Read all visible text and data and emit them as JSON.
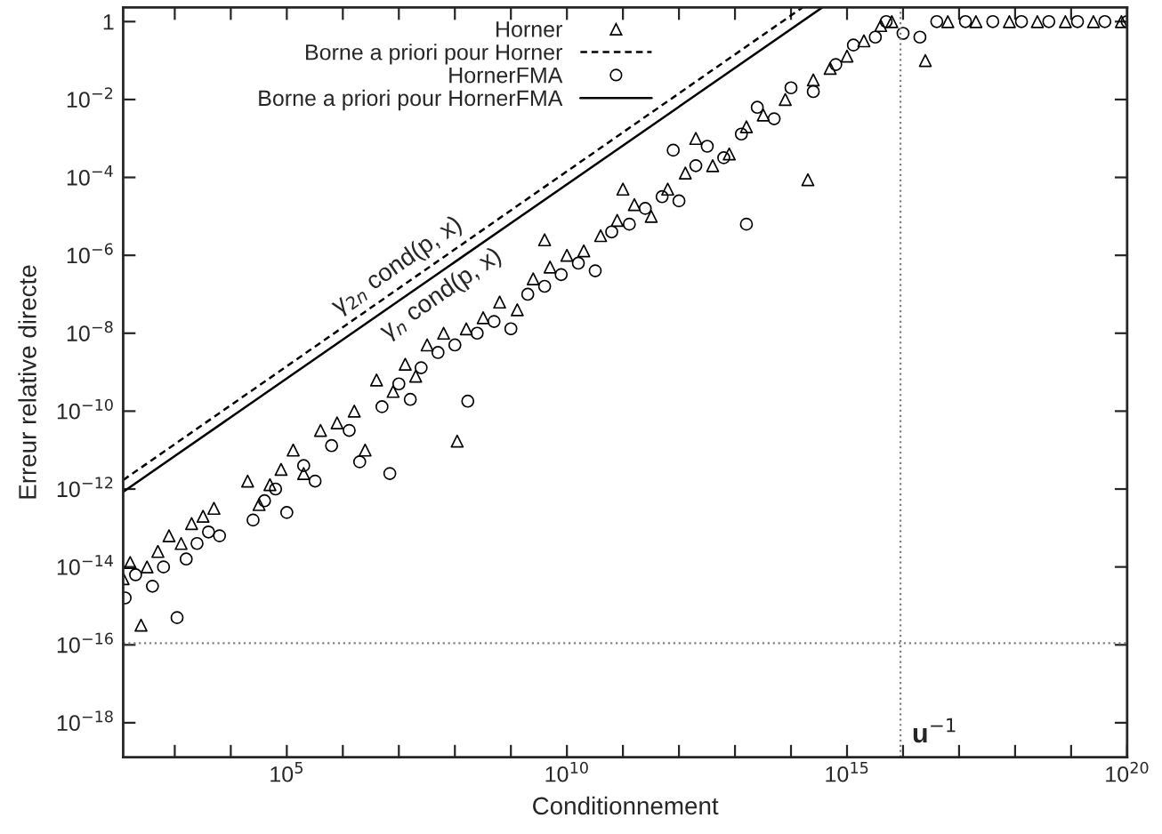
{
  "chart_data": {
    "type": "scatter",
    "xlabel": "Conditionnement",
    "ylabel": "Erreur relative directe",
    "log": "xy",
    "grid": false,
    "legend": "top",
    "xlim": [
      120,
      1e+20
    ],
    "ylim": [
      1.3e-19,
      2.3
    ],
    "xticks": [
      {
        "value": 1000,
        "label": null
      },
      {
        "value": 10000,
        "label": null
      },
      {
        "value": 100000,
        "label": "10$^{5}$"
      },
      {
        "value": 1000000.0,
        "label": null
      },
      {
        "value": 10000000.0,
        "label": null
      },
      {
        "value": 100000000.0,
        "label": null
      },
      {
        "value": 1000000000.0,
        "label": null
      },
      {
        "value": 10000000000.0,
        "label": "10$^{10}$"
      },
      {
        "value": 100000000000.0,
        "label": null
      },
      {
        "value": 1000000000000.0,
        "label": null
      },
      {
        "value": 10000000000000.0,
        "label": null
      },
      {
        "value": 100000000000000.0,
        "label": null
      },
      {
        "value": 1000000000000000.0,
        "label": "10$^{15}$"
      },
      {
        "value": 1e+16,
        "label": null
      },
      {
        "value": 1e+17,
        "label": null
      },
      {
        "value": 1e+18,
        "label": null
      },
      {
        "value": 1e+19,
        "label": null
      },
      {
        "value": 1e+20,
        "label": "10$^{20}$"
      }
    ],
    "yticks": [
      {
        "value": 1,
        "label": "1"
      },
      {
        "value": 0.01,
        "label": "10$^{−2}$"
      },
      {
        "value": 0.0001,
        "label": "10$^{−4}$"
      },
      {
        "value": 1e-06,
        "label": "10$^{−6}$"
      },
      {
        "value": 1e-08,
        "label": "10$^{−8}$"
      },
      {
        "value": 1e-10,
        "label": "10$^{−10}$"
      },
      {
        "value": 1e-12,
        "label": "10$^{−12}$"
      },
      {
        "value": 1e-14,
        "label": "10$^{−14}$"
      },
      {
        "value": 1e-16,
        "label": "10$^{−16}$"
      },
      {
        "value": 1e-18,
        "label": "10$^{−18}$"
      }
    ],
    "series": [
      {
        "name": "Horner",
        "marker": "triangle",
        "color": "#000000",
        "x": [
          120,
          160,
          250,
          320,
          500,
          790,
          1300,
          2000,
          3200,
          5000,
          20000,
          32000,
          50000,
          79000,
          130000,
          200000,
          400000,
          790000,
          1600000.0,
          2500000.0,
          4000000.0,
          7900000.0,
          13000000.0,
          20000000.0,
          32000000.0,
          63000000.0,
          110000000.0,
          160000000.0,
          320000000.0,
          630000000.0,
          1300000000.0,
          2500000000.0,
          5000000000.0,
          10000000000.0,
          20000000000.0,
          40000000000.0,
          79000000000.0,
          160000000000.0,
          320000000000.0,
          630000000000.0,
          1300000000000.0,
          2000000000000.0,
          4000000000000.0,
          7900000000000.0,
          16000000000000.0,
          32000000000000.0,
          79000000000000.0,
          200000000000000.0,
          250000000000000.0,
          500000000000000.0,
          1000000000000000.0,
          2000000000000000.0,
          4000000000000000.0,
          6300000000000000.0,
          2.5e+16,
          6.3e+16,
          2e+17,
          7.9e+17,
          2.5e+18,
          7.9e+18,
          2.5e+19,
          7.9e+19,
          100000000000.0,
          4000000000.0
        ],
        "values": [
          5e-15,
          1.3e-14,
          3.2e-16,
          1e-14,
          2.5e-14,
          6.3e-14,
          4e-14,
          1.3e-13,
          2e-13,
          3.2e-13,
          1.6e-12,
          4e-13,
          1.3e-12,
          3.2e-12,
          1e-11,
          2.5e-12,
          3.2e-11,
          5e-11,
          1e-10,
          1e-11,
          6.3e-10,
          3.2e-10,
          1.6e-09,
          7.9e-10,
          5e-09,
          1e-08,
          1.7e-11,
          1.3e-08,
          2.5e-08,
          6.3e-08,
          4e-08,
          2.5e-07,
          5e-07,
          1e-06,
          1.3e-06,
          3.2e-06,
          7.9e-06,
          2e-05,
          1e-05,
          5e-05,
          0.00013,
          0.001,
          0.0002,
          0.0004,
          0.002,
          0.004,
          0.01,
          8.7e-05,
          0.032,
          0.063,
          0.13,
          0.32,
          0.79,
          1,
          0.1,
          1,
          1,
          1,
          1,
          1,
          1,
          1,
          5e-05,
          2.5e-06
        ]
      },
      {
        "name": "Borne a priori pour Horner",
        "type": "line",
        "line_style": "dashed",
        "marker": "none",
        "color": "#000000",
        "x": [
          120,
          160000000000000.0
        ],
        "values": [
          1.7e-12,
          2.3
        ]
      },
      {
        "name": "HornerFMA",
        "marker": "circle",
        "color": "#000000",
        "x": [
          130,
          200,
          400,
          630,
          1100,
          1600,
          2500,
          4000,
          6300,
          25000,
          40000,
          63000,
          100000,
          200000,
          320000,
          630000,
          1300000.0,
          2000000.0,
          6900000.0,
          5000000.0,
          10000000.0,
          16000000.0,
          25000000.0,
          50000000.0,
          100000000.0,
          170000000.0,
          250000000.0,
          500000000.0,
          1000000000.0,
          2000000000.0,
          4000000000.0,
          7900000000.0,
          16000000000.0,
          32000000000.0,
          63000000000.0,
          130000000000.0,
          250000000000.0,
          500000000000.0,
          1000000000000.0,
          2000000000000.0,
          3200000000000.0,
          6300000000000.0,
          13000000000000.0,
          16000000000000.0,
          25000000000000.0,
          50000000000000.0,
          100000000000000.0,
          250000000000000.0,
          630000000000000.0,
          1300000000000000.0,
          3200000000000000.0,
          5000000000000000.0,
          1e+16,
          2e+16,
          4e+16,
          1.3e+17,
          4e+17,
          1.3e+18,
          4e+18,
          1.3e+19,
          4e+19,
          1e+20,
          790000000000.0
        ],
        "values": [
          1.6e-15,
          6.3e-15,
          3.2e-15,
          1e-14,
          5e-16,
          1.6e-14,
          4e-14,
          7.9e-14,
          6.3e-14,
          1.6e-13,
          5e-13,
          1e-12,
          2.5e-13,
          4e-12,
          1.6e-12,
          1.3e-11,
          3.2e-11,
          5e-12,
          2.5e-12,
          1.3e-10,
          5e-10,
          2e-10,
          1.3e-09,
          3.2e-09,
          5e-09,
          1.8e-10,
          1e-08,
          2e-08,
          1.3e-08,
          1e-07,
          1.6e-07,
          3.2e-07,
          6.3e-07,
          4e-07,
          4e-06,
          6.3e-06,
          1.6e-05,
          3.2e-05,
          2.5e-05,
          0.0002,
          0.00063,
          0.00032,
          0.0013,
          6.3e-06,
          0.0063,
          0.0032,
          0.02,
          0.016,
          0.079,
          0.25,
          0.4,
          1,
          0.5,
          0.4,
          1,
          1,
          1,
          1,
          1,
          1,
          1,
          1,
          0.0005
        ]
      },
      {
        "name": "Borne a priori pour HornerFMA",
        "type": "line",
        "line_style": "solid",
        "marker": "none",
        "color": "#000000",
        "x": [
          120,
          360000000000000.0
        ],
        "values": [
          8.5e-13,
          2.3
        ]
      }
    ],
    "ref_lines": [
      {
        "axis": "x",
        "value": 9000000000000000.0,
        "label": "u$^{−1}$",
        "color": "#808080",
        "line_style": "dotted"
      },
      {
        "axis": "y",
        "value": 1.1e-16,
        "color": "#808080",
        "line_style": "dotted"
      }
    ],
    "annotations": [
      "γ$_{2n}$ cond(p, x)",
      "γ$_{n}$ cond(p, x)"
    ]
  }
}
